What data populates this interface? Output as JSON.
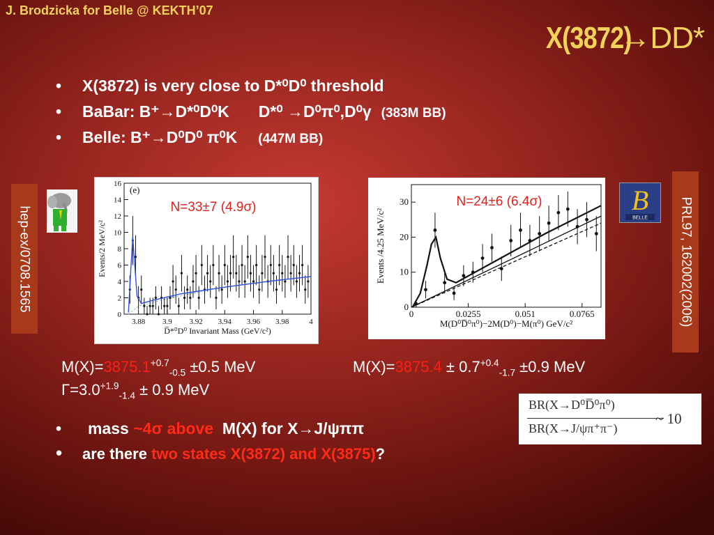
{
  "header": {
    "author": "J. Brodzicka for Belle @ KEKTH’07",
    "title_a": "X(3872)",
    "title_b": "→DD*"
  },
  "bullets": {
    "b1": "X(3872) is very close to D*⁰D⁰ threshold",
    "b2_main": "BaBar: B⁺→D*⁰D⁰K",
    "b2_decay": "D*⁰ →D⁰π⁰,D⁰γ",
    "b2_stat": "(383M BB)",
    "b3_main": "Belle:   B⁺→D⁰D⁰ π⁰K",
    "b3_stat": "(447M BB)",
    "bullet_char": "•"
  },
  "sidebars": {
    "left": "hep-ex/0708.1565",
    "right": "PRL97, 162002(2006)"
  },
  "mass": {
    "babar_prefix": "M(X)=",
    "babar_value": "3875.1",
    "babar_sup": "+0.7",
    "babar_sub": "-0.5",
    "babar_rest": "±0.5 MeV",
    "width_prefix": "Γ=3.0",
    "width_sup": "+1.9",
    "width_sub": "-1.4",
    "width_rest": "± 0.9 MeV",
    "belle_prefix": "M(X)=",
    "belle_value": "3875.4",
    "belle_mid": "± 0.7",
    "belle_sup": "+0.4",
    "belle_sub": "-1.7",
    "belle_rest": "±0.9 MeV"
  },
  "br_ratio": {
    "numerator": "BR(X→D⁰D̅⁰π⁰)",
    "denominator": "BR(X→J/ψπ⁺π⁻)",
    "result": "~ 10"
  },
  "bottom": {
    "b1_a": "mass",
    "b1_red": "~4σ above",
    "b1_b": "M(X) for X→J/ψππ",
    "b2_a": "are there",
    "b2_red": "two states X(3872) and X(3875)",
    "b2_b": "?"
  },
  "logos": {
    "belle_letter": "B",
    "belle_text": "BELLE"
  },
  "colors": {
    "accent": "#f3d25a",
    "highlight": "#ff2b17",
    "side_box": "#a8391a"
  },
  "chart_data": [
    {
      "type": "scatter",
      "label": "(e)",
      "annotation": "N=33±7 (4.9σ)",
      "xlabel": "D̅*⁰D⁰ Invariant Mass (GeV/c²)",
      "ylabel": "Events/2 MeV/c²",
      "xlim": [
        3.87,
        4.0
      ],
      "ylim": [
        0,
        16
      ],
      "xticks": [
        3.88,
        3.9,
        3.92,
        3.94,
        3.96,
        3.98,
        4
      ],
      "xtick_labels": [
        "3.88",
        "3.9",
        "3.92",
        "3.94",
        "3.96",
        "3.98",
        "4"
      ],
      "yticks": [
        0,
        2,
        4,
        6,
        8,
        10,
        12,
        14,
        16
      ],
      "ytick_labels": [
        "0",
        "2",
        "4",
        "6",
        "8",
        "10",
        "12",
        "14",
        "16"
      ],
      "x": [
        3.874,
        3.876,
        3.878,
        3.88,
        3.882,
        3.884,
        3.886,
        3.888,
        3.89,
        3.892,
        3.894,
        3.896,
        3.898,
        3.9,
        3.902,
        3.904,
        3.906,
        3.908,
        3.91,
        3.912,
        3.914,
        3.916,
        3.918,
        3.92,
        3.922,
        3.924,
        3.926,
        3.928,
        3.93,
        3.932,
        3.934,
        3.936,
        3.938,
        3.94,
        3.942,
        3.944,
        3.946,
        3.948,
        3.95,
        3.952,
        3.954,
        3.956,
        3.958,
        3.96,
        3.962,
        3.964,
        3.966,
        3.968,
        3.97,
        3.972,
        3.974,
        3.976,
        3.978,
        3.98,
        3.982,
        3.984,
        3.986,
        3.988,
        3.99,
        3.992,
        3.994,
        3.996,
        3.998
      ],
      "y": [
        3,
        9,
        7,
        2,
        3,
        1,
        0,
        1,
        1,
        2,
        0,
        2,
        1,
        1,
        2,
        4,
        3,
        1,
        5,
        2,
        3,
        2,
        4,
        5,
        2,
        6,
        3,
        5,
        4,
        6,
        2,
        5,
        3,
        6,
        4,
        5,
        7,
        5,
        4,
        6,
        4,
        7,
        5,
        4,
        6,
        3,
        5,
        7,
        4,
        6,
        5,
        3,
        6,
        5,
        4,
        7,
        5,
        6,
        4,
        5,
        6,
        3,
        4
      ],
      "fit_total": [
        [
          3.873,
          0.2
        ],
        [
          3.875,
          6.5
        ],
        [
          3.876,
          9.5
        ],
        [
          3.877,
          7
        ],
        [
          3.879,
          2.2
        ],
        [
          3.882,
          1.3
        ],
        [
          3.89,
          1.7
        ],
        [
          3.91,
          2.5
        ],
        [
          3.94,
          3.3
        ],
        [
          3.97,
          4.0
        ],
        [
          4.0,
          4.6
        ]
      ],
      "fit_background": [
        [
          3.873,
          0
        ],
        [
          3.88,
          1.0
        ],
        [
          3.9,
          1.9
        ],
        [
          3.93,
          3.0
        ],
        [
          3.96,
          3.8
        ],
        [
          4.0,
          4.6
        ]
      ]
    },
    {
      "type": "scatter",
      "annotation": "N=24±6 (6.4σ)",
      "xlabel": "M(D⁰D̅⁰π⁰)−2M(D⁰)−M(π⁰) GeV/c²",
      "ylabel": "Events /4.25 MeV/c²",
      "xlim": [
        0,
        0.085
      ],
      "ylim": [
        0,
        35
      ],
      "xticks": [
        0,
        0.0255,
        0.051,
        0.0765
      ],
      "xtick_labels": [
        "0",
        "0.0255",
        "0.051",
        "0.0765"
      ],
      "yticks": [
        0,
        10,
        20,
        30
      ],
      "ytick_labels": [
        "0",
        "10",
        "20",
        "30"
      ],
      "x": [
        0.0021,
        0.0064,
        0.0106,
        0.0149,
        0.0191,
        0.0234,
        0.0276,
        0.0319,
        0.0361,
        0.0404,
        0.0446,
        0.0489,
        0.0531,
        0.0574,
        0.0616,
        0.0659,
        0.0701,
        0.0744,
        0.0786,
        0.0829
      ],
      "y": [
        1,
        5,
        22,
        7,
        4,
        9,
        10,
        14,
        17,
        11,
        19,
        22,
        19,
        21,
        24,
        27,
        28,
        23,
        25,
        21
      ],
      "yerr": [
        1,
        2.5,
        5,
        3,
        2,
        3,
        3,
        4,
        4,
        3.5,
        4.5,
        5,
        4.5,
        5,
        5,
        5,
        5,
        5,
        5,
        5
      ],
      "fit_total": [
        [
          0.0005,
          0
        ],
        [
          0.004,
          4
        ],
        [
          0.007,
          12
        ],
        [
          0.009,
          18
        ],
        [
          0.011,
          20
        ],
        [
          0.013,
          14
        ],
        [
          0.016,
          8
        ],
        [
          0.02,
          7
        ],
        [
          0.04,
          14
        ],
        [
          0.06,
          21
        ],
        [
          0.085,
          29
        ]
      ],
      "fit_background": [
        [
          0.0,
          0
        ],
        [
          0.085,
          26
        ]
      ],
      "fit_dashed": [
        [
          0.0,
          0
        ],
        [
          0.085,
          24
        ]
      ]
    }
  ]
}
